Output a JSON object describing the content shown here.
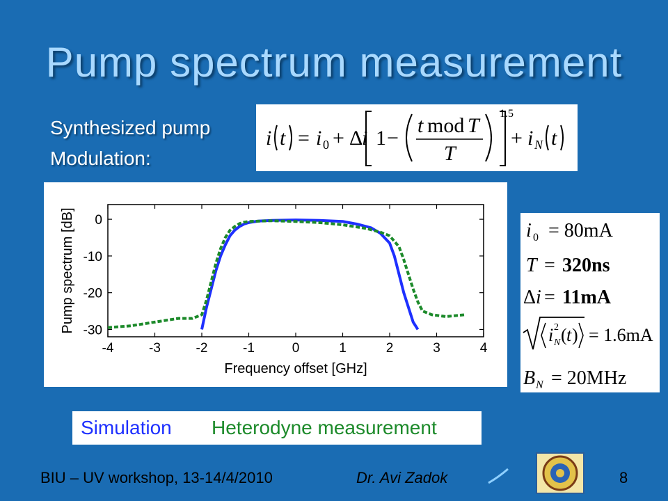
{
  "slide": {
    "title": "Pump spectrum measurement",
    "subtitle_line1": "Synthesized pump",
    "subtitle_line2": "Modulation:",
    "footer_left": "BIU – UV workshop, 13-14/4/2010",
    "footer_center": "Dr. Avi Zadok",
    "page_number": "8"
  },
  "equations": {
    "main_formula": "i(t) = i0 + Δi [1 − ((t mod T)/T)^1.5] + iN(t)",
    "params": [
      "i0 = 80mA",
      "T = 320ns",
      "Δi = 11mA",
      "√⟨iN²(t)⟩ = 1.6mA",
      "BN = 20MHz"
    ]
  },
  "legend": {
    "simulation_label": "Simulation",
    "measurement_label": "Heterodyne measurement"
  },
  "colors": {
    "background": "#1a6cb3",
    "title": "#a9d9ff",
    "simulation": "#1e30ff",
    "measurement": "#1c8a2a"
  },
  "chart_data": {
    "type": "line",
    "xlabel": "Frequency offset [GHz]",
    "ylabel": "Pump spectrum [dB]",
    "xlim": [
      -4,
      4
    ],
    "ylim": [
      -32,
      4
    ],
    "xticks": [
      "-4",
      "-3",
      "-2",
      "-1",
      "0",
      "1",
      "2",
      "3",
      "4"
    ],
    "yticks": [
      "0",
      "-10",
      "-20",
      "-30"
    ],
    "xtick_values": [
      -4,
      -3,
      -2,
      -1,
      0,
      1,
      2,
      3,
      4
    ],
    "ytick_values": [
      0,
      -10,
      -20,
      -30
    ],
    "series": [
      {
        "name": "Simulation",
        "style": "solid",
        "x": [
          -2.0,
          -1.9,
          -1.8,
          -1.7,
          -1.6,
          -1.5,
          -1.4,
          -1.3,
          -1.2,
          -1.1,
          -1.0,
          -0.8,
          -0.5,
          0.0,
          0.5,
          1.0,
          1.3,
          1.6,
          1.8,
          2.0,
          2.1,
          2.2,
          2.3,
          2.4,
          2.5,
          2.6
        ],
        "y": [
          -30,
          -24,
          -19,
          -14,
          -10,
          -7,
          -4.5,
          -3,
          -2,
          -1.3,
          -0.9,
          -0.5,
          -0.3,
          -0.2,
          -0.3,
          -0.6,
          -1.3,
          -2.3,
          -3.8,
          -6.5,
          -10,
          -15,
          -20,
          -24,
          -28,
          -30
        ]
      },
      {
        "name": "Heterodyne measurement",
        "style": "dashed",
        "x": [
          -4.0,
          -3.5,
          -3.0,
          -2.5,
          -2.2,
          -2.0,
          -1.9,
          -1.8,
          -1.7,
          -1.6,
          -1.5,
          -1.4,
          -1.3,
          -1.2,
          -1.1,
          -1.0,
          -0.5,
          0.0,
          0.5,
          1.0,
          1.5,
          1.8,
          2.0,
          2.2,
          2.3,
          2.4,
          2.5,
          2.6,
          2.7,
          2.9,
          3.2,
          3.6
        ],
        "y": [
          -29.5,
          -29,
          -28,
          -27,
          -27,
          -26,
          -22,
          -17,
          -12,
          -8,
          -5,
          -3,
          -2,
          -1.2,
          -0.8,
          -0.6,
          -0.4,
          -0.6,
          -0.9,
          -1.5,
          -2.5,
          -3.5,
          -4.5,
          -7.5,
          -11,
          -15,
          -19,
          -22.5,
          -25,
          -26,
          -26.5,
          -26
        ]
      }
    ]
  }
}
